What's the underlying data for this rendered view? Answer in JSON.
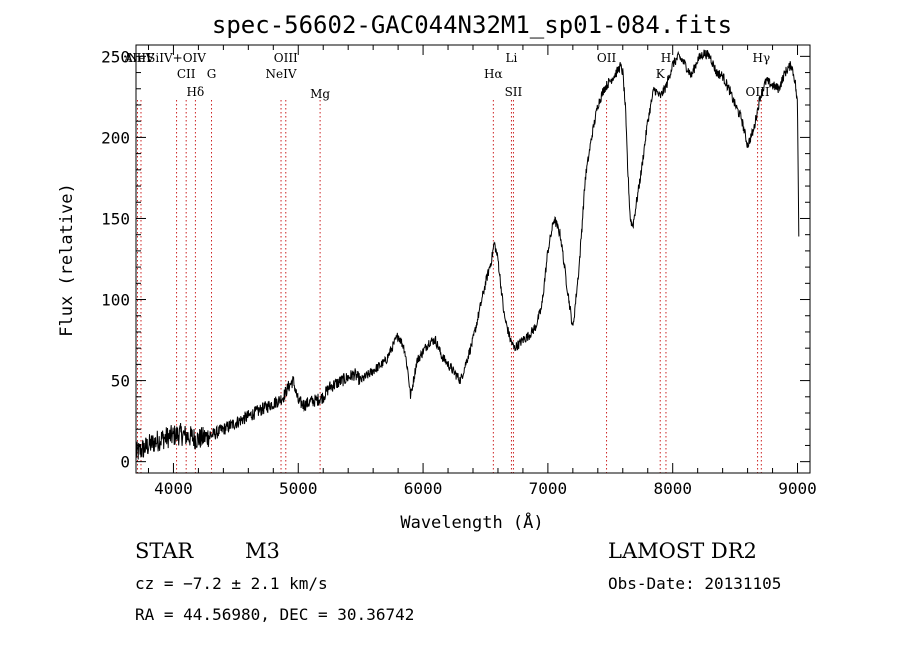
{
  "chart_data": {
    "type": "line",
    "title": "spec-56602-GAC044N32M1_sp01-084.fits",
    "xlabel": "Wavelength (Å)",
    "ylabel": "Flux (relative)",
    "xlim": [
      3700,
      9100
    ],
    "ylim": [
      -7,
      257
    ],
    "xticks": [
      4000,
      5000,
      6000,
      7000,
      8000,
      9000
    ],
    "yticks": [
      0,
      50,
      100,
      150,
      200,
      250
    ],
    "spectrum_anchors": {
      "wavelength": [
        3700,
        3760,
        3800,
        3850,
        3900,
        3950,
        4000,
        4050,
        4100,
        4150,
        4200,
        4250,
        4300,
        4400,
        4500,
        4600,
        4700,
        4800,
        4850,
        4880,
        4920,
        4960,
        5000,
        5050,
        5100,
        5150,
        5200,
        5250,
        5300,
        5400,
        5450,
        5500,
        5600,
        5700,
        5800,
        5850,
        5880,
        5900,
        5950,
        6000,
        6050,
        6100,
        6150,
        6200,
        6300,
        6400,
        6500,
        6550,
        6570,
        6600,
        6650,
        6700,
        6730,
        6760,
        6800,
        6850,
        6900,
        6950,
        7000,
        7050,
        7100,
        7150,
        7200,
        7250,
        7300,
        7350,
        7400,
        7450,
        7500,
        7550,
        7580,
        7600,
        7620,
        7640,
        7660,
        7680,
        7700,
        7750,
        7800,
        7850,
        7900,
        7950,
        8000,
        8050,
        8100,
        8150,
        8200,
        8250,
        8300,
        8350,
        8400,
        8450,
        8500,
        8550,
        8600,
        8650,
        8700,
        8750,
        8800,
        8850,
        8900,
        8950,
        8980,
        9000,
        9010
      ],
      "flux": [
        5,
        8,
        10,
        12,
        14,
        15,
        16,
        17,
        16,
        15,
        14,
        15,
        16,
        20,
        24,
        28,
        32,
        36,
        38,
        40,
        46,
        50,
        37,
        35,
        37,
        38,
        40,
        46,
        48,
        52,
        54,
        50,
        56,
        62,
        78,
        70,
        55,
        40,
        62,
        68,
        74,
        75,
        65,
        60,
        50,
        75,
        110,
        125,
        135,
        125,
        90,
        75,
        70,
        72,
        75,
        78,
        83,
        95,
        130,
        150,
        140,
        110,
        82,
        120,
        175,
        200,
        220,
        230,
        235,
        240,
        244,
        240,
        220,
        180,
        150,
        145,
        155,
        180,
        210,
        230,
        225,
        232,
        245,
        250,
        245,
        238,
        248,
        252,
        250,
        240,
        238,
        230,
        220,
        212,
        195,
        205,
        225,
        235,
        232,
        230,
        240,
        245,
        235,
        220,
        140
      ]
    },
    "lines": [
      {
        "name": "AlIII",
        "wl": 3712
      },
      {
        "name": "NeV",
        "wl": 3740
      },
      {
        "name": "SiIV+OIV",
        "wl": 4025
      },
      {
        "name": "CII",
        "wl": 4102
      },
      {
        "name": "Hδ",
        "wl": 4176
      },
      {
        "name": "G",
        "wl": 4305
      },
      {
        "name": "OIII",
        "wl": 4900
      },
      {
        "name": "NeIV",
        "wl": 4862
      },
      {
        "name": "Mg",
        "wl": 5175
      },
      {
        "name": "Hα",
        "wl": 6563
      },
      {
        "name": "Li",
        "wl": 6708
      },
      {
        "name": "SII",
        "wl": 6724
      },
      {
        "name": "OII",
        "wl": 7470
      },
      {
        "name": "K",
        "wl": 7900
      },
      {
        "name": "H",
        "wl": 7946
      },
      {
        "name": "OIII",
        "wl": 8680
      },
      {
        "name": "Hγ",
        "wl": 8710
      }
    ]
  },
  "info": {
    "object_class": "STAR",
    "subclass": "M3",
    "survey": "LAMOST DR2",
    "cz": "cz = −7.2 ± 2.1 km/s",
    "obs_date": "Obs-Date: 20131105",
    "coords": "RA =  44.56980, DEC =  30.36742"
  }
}
